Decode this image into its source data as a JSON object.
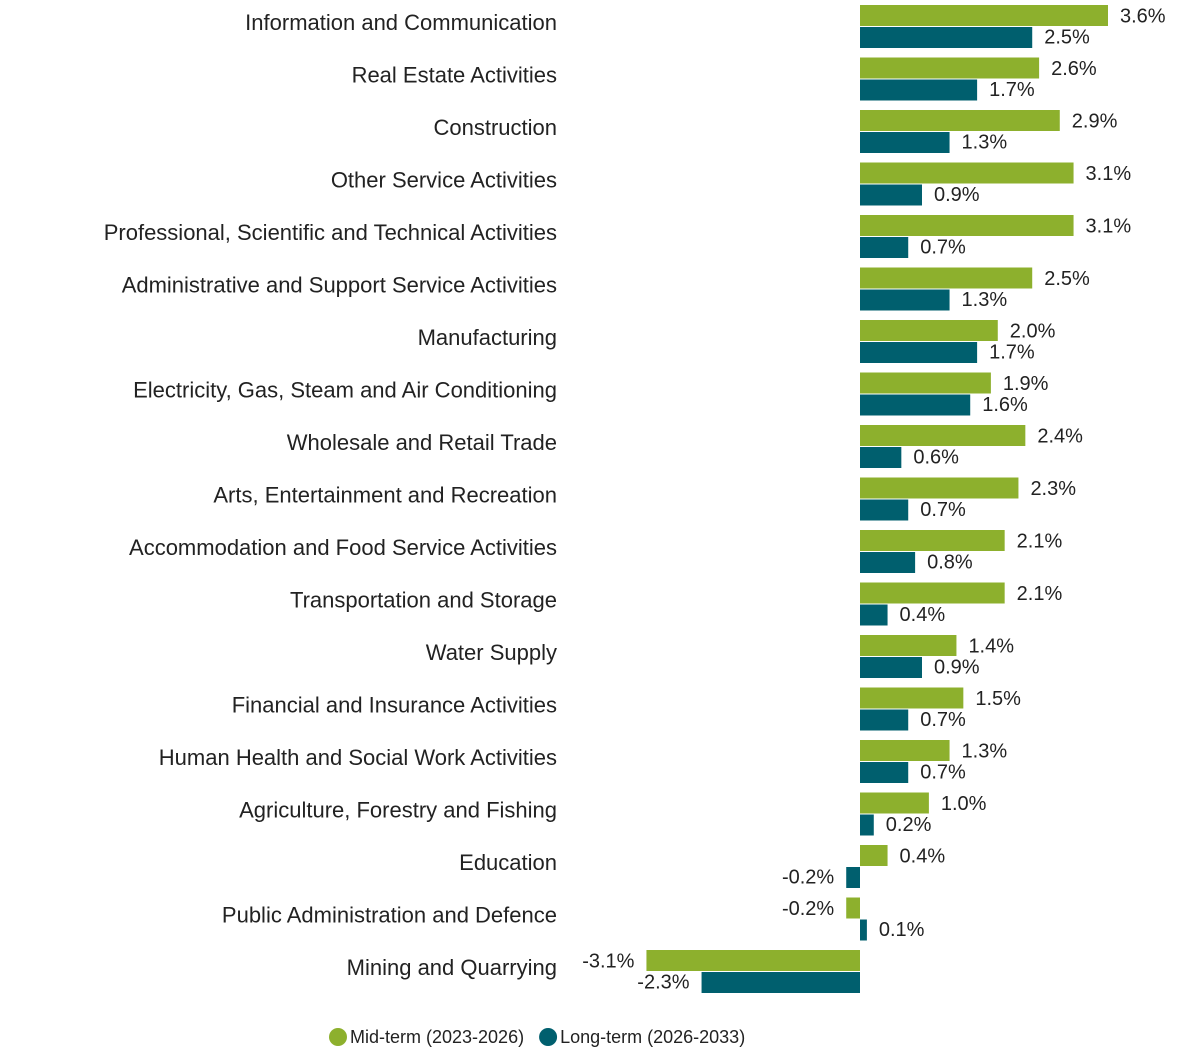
{
  "chart_data": {
    "type": "bar",
    "orientation": "horizontal",
    "categories": [
      "Information and Communication",
      "Real Estate Activities",
      "Construction",
      "Other Service Activities",
      "Professional, Scientific and Technical Activities",
      "Administrative and Support Service Activities",
      "Manufacturing",
      "Electricity, Gas, Steam and Air Conditioning",
      "Wholesale and Retail Trade",
      "Arts, Entertainment and Recreation",
      "Accommodation and Food Service Activities",
      "Transportation and Storage",
      "Water Supply",
      "Financial and Insurance Activities",
      "Human Health and Social Work Activities",
      "Agriculture, Forestry and Fishing",
      "Education",
      "Public Administration and Defence",
      "Mining and Quarrying"
    ],
    "series": [
      {
        "name": "Mid-term (2023-2026)",
        "color": "#8db02d",
        "values": [
          3.6,
          2.6,
          2.9,
          3.1,
          3.1,
          2.5,
          2.0,
          1.9,
          2.4,
          2.3,
          2.1,
          2.1,
          1.4,
          1.5,
          1.3,
          1.0,
          0.4,
          -0.2,
          -3.1
        ],
        "value_labels": [
          "3.6%",
          "2.6%",
          "2.9%",
          "3.1%",
          "3.1%",
          "2.5%",
          "2.0%",
          "1.9%",
          "2.4%",
          "2.3%",
          "2.1%",
          "2.1%",
          "1.4%",
          "1.5%",
          "1.3%",
          "1.0%",
          "0.4%",
          "-0.2%",
          "-3.1%"
        ]
      },
      {
        "name": "Long-term (2026-2033)",
        "color": "#005f6e",
        "values": [
          2.5,
          1.7,
          1.3,
          0.9,
          0.7,
          1.3,
          1.7,
          1.6,
          0.6,
          0.7,
          0.8,
          0.4,
          0.9,
          0.7,
          0.7,
          0.2,
          -0.2,
          0.1,
          -2.3
        ],
        "value_labels": [
          "2.5%",
          "1.7%",
          "1.3%",
          "0.9%",
          "0.7%",
          "1.3%",
          "1.7%",
          "1.6%",
          "0.6%",
          "0.7%",
          "0.8%",
          "0.4%",
          "0.9%",
          "0.7%",
          "0.7%",
          "0.2%",
          "-0.2%",
          "0.1%",
          "-2.3%"
        ]
      }
    ],
    "legend": "bottom"
  }
}
